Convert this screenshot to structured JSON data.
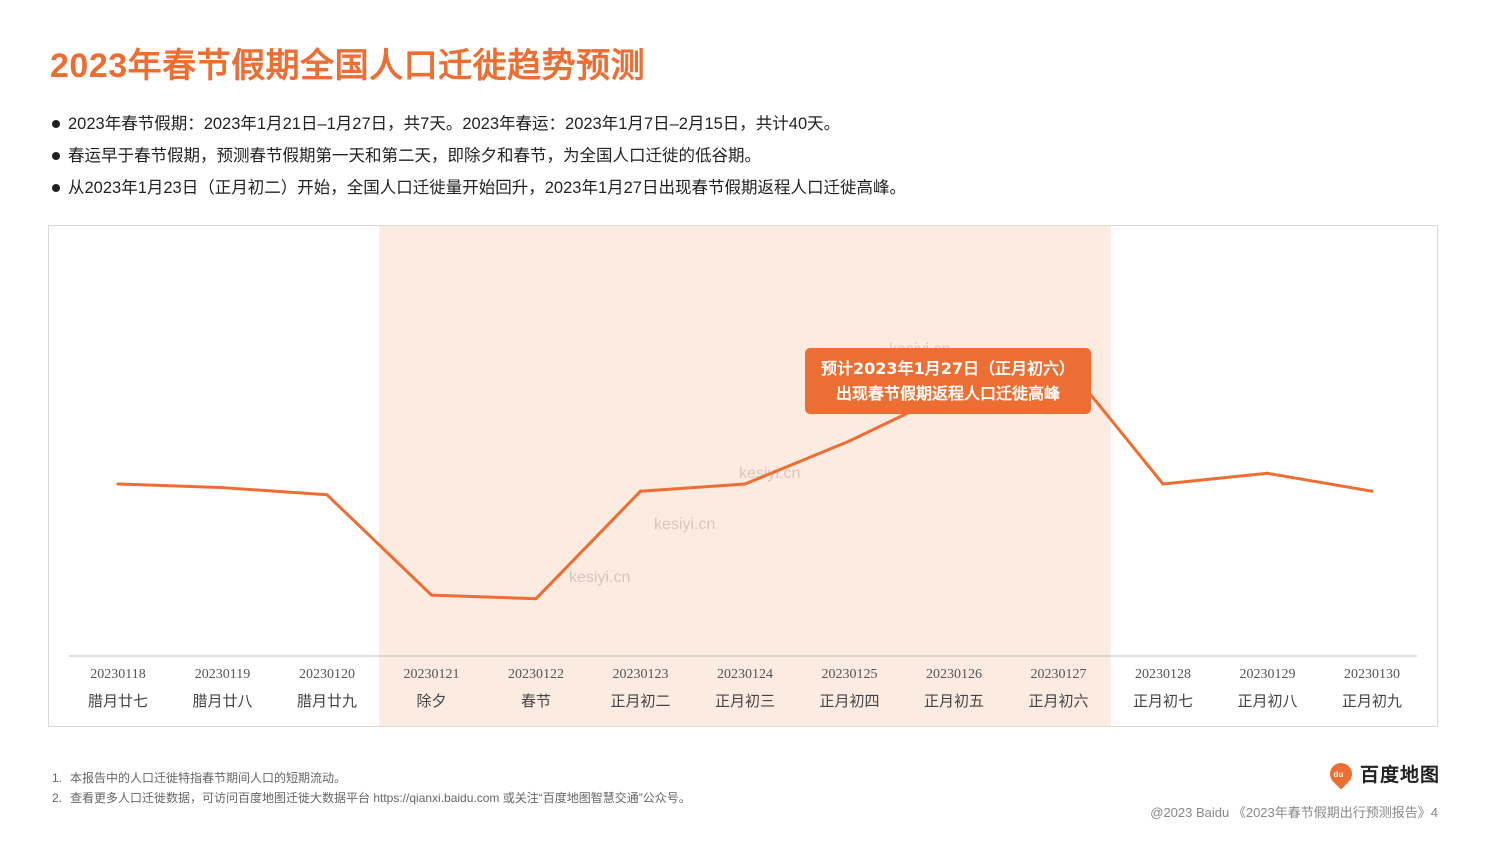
{
  "page": {
    "title": "2023年春节假期全国人口迁徙趋势预测",
    "bullets": [
      "2023年春节假期：2023年1月21日–1月27日，共7天。2023年春运：2023年1月7日–2月15日，共计40天。",
      "春运早于春节假期，预测春节假期第一天和第二天，即除夕和春节，为全国人口迁徙的低谷期。",
      "从2023年1月23日（正月初二）开始，全国人口迁徙量开始回升，2023年1月27日出现春节假期返程人口迁徙高峰。"
    ],
    "footnotes": [
      {
        "num": "1.",
        "text": "本报告中的人口迁徙特指春节期间人口的短期流动。"
      },
      {
        "num": "2.",
        "text": "查看更多人口迁徙数据，可访问百度地图迁徙大数据平台 https://qianxi.baidu.com 或关注“百度地图智慧交通”公众号。"
      }
    ],
    "logo_text": "百度地图",
    "logo_mark_text": "du",
    "copyright": "@2023 Baidu 《2023年春节假期出行预测报告》4"
  },
  "chart_data": {
    "type": "line",
    "categories": [
      "20230118",
      "20230119",
      "20230120",
      "20230121",
      "20230122",
      "20230123",
      "20230124",
      "20230125",
      "20230126",
      "20230127",
      "20230128",
      "20230129",
      "20230130"
    ],
    "lunar_labels": [
      "腊月廿七",
      "腊月廿八",
      "腊月廿九",
      "除夕",
      "春节",
      "正月初二",
      "正月初三",
      "正月初四",
      "正月初五",
      "正月初六",
      "正月初七",
      "正月初八",
      "正月初九"
    ],
    "series": [
      {
        "values": [
          48,
          47,
          45,
          17,
          16,
          46,
          48,
          60,
          74,
          84,
          48,
          51,
          46
        ]
      }
    ],
    "ylim": [
      0,
      120
    ],
    "highlight_range": [
      "20230121",
      "20230127"
    ],
    "annotation": {
      "target": "20230127",
      "lines": [
        "预计2023年1月27日（正月初六）",
        "出现春节假期返程人口迁徙高峰"
      ]
    },
    "colors": {
      "line": "#ec6e33",
      "highlight": "#fcebe0",
      "annotation_bg": "#ec6e33"
    },
    "grid": false,
    "watermark": "kesiyi.cn"
  }
}
